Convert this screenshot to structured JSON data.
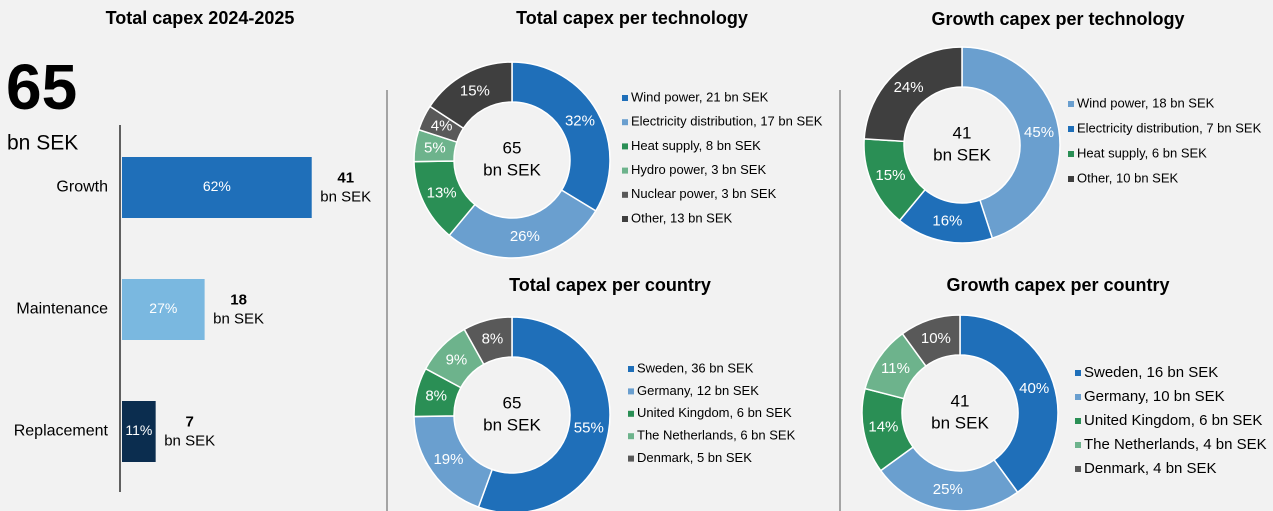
{
  "chart_data": [
    {
      "type": "hbar",
      "title": "Total capex 2024-2025",
      "total": 65,
      "unit": "bn SEK",
      "categories": [
        "Growth",
        "Maintenance",
        "Replacement"
      ],
      "values": [
        62,
        27,
        11
      ],
      "value_labels": [
        "62%",
        "27%",
        "11%"
      ],
      "amounts": [
        41,
        18,
        7
      ],
      "colors": [
        "#1f6fb9",
        "#7ab8e0",
        "#0b2d4f"
      ]
    },
    {
      "type": "pie",
      "donut": true,
      "title": "Total capex per technology",
      "center_value": 65,
      "center_unit": "bn SEK",
      "categories": [
        "Wind power, 21 bn SEK",
        "Electricity distribution, 17 bn SEK",
        "Heat supply, 8 bn SEK",
        "Hydro power, 3 bn SEK",
        "Nuclear power, 3 bn SEK",
        "Other, 13 bn SEK"
      ],
      "values": [
        32,
        26,
        13,
        5,
        4,
        15
      ],
      "value_labels": [
        "32%",
        "26%",
        "13%",
        "5%",
        "4%",
        "15%"
      ],
      "colors": [
        "#1f6fb9",
        "#6a9fcf",
        "#2a8f55",
        "#6db38c",
        "#595959",
        "#3f3f3f"
      ]
    },
    {
      "type": "pie",
      "donut": true,
      "title": "Growth capex per technology",
      "center_value": 41,
      "center_unit": "bn SEK",
      "categories": [
        "Wind power, 18 bn SEK",
        "Electricity distribution, 7 bn SEK",
        "Heat supply, 6 bn SEK",
        "Other, 10 bn SEK"
      ],
      "values": [
        45,
        16,
        15,
        24
      ],
      "value_labels": [
        "45%",
        "16%",
        "15%",
        "24%"
      ],
      "colors": [
        "#6a9fcf",
        "#1f6fb9",
        "#2a8f55",
        "#3f3f3f"
      ]
    },
    {
      "type": "pie",
      "donut": true,
      "title": "Total capex per country",
      "center_value": 65,
      "center_unit": "bn SEK",
      "categories": [
        "Sweden, 36 bn SEK",
        "Germany, 12 bn SEK",
        "United Kingdom, 6 bn SEK",
        "The Netherlands, 6 bn SEK",
        "Denmark, 5 bn SEK"
      ],
      "values": [
        55,
        19,
        8,
        9,
        8
      ],
      "value_labels": [
        "55%",
        "19%",
        "8%",
        "9%",
        "8%"
      ],
      "colors": [
        "#1f6fb9",
        "#6a9fcf",
        "#2a8f55",
        "#6db38c",
        "#595959"
      ]
    },
    {
      "type": "pie",
      "donut": true,
      "title": "Growth capex per country",
      "center_value": 41,
      "center_unit": "bn SEK",
      "categories": [
        "Sweden, 16 bn SEK",
        "Germany, 10 bn SEK",
        "United Kingdom, 6 bn SEK",
        "The Netherlands, 4 bn SEK",
        "Denmark, 4 bn SEK"
      ],
      "values": [
        40,
        25,
        14,
        11,
        10
      ],
      "value_labels": [
        "40%",
        "25%",
        "14%",
        "11%",
        "10%"
      ],
      "colors": [
        "#1f6fb9",
        "#6a9fcf",
        "#2a8f55",
        "#6db38c",
        "#595959"
      ]
    }
  ]
}
